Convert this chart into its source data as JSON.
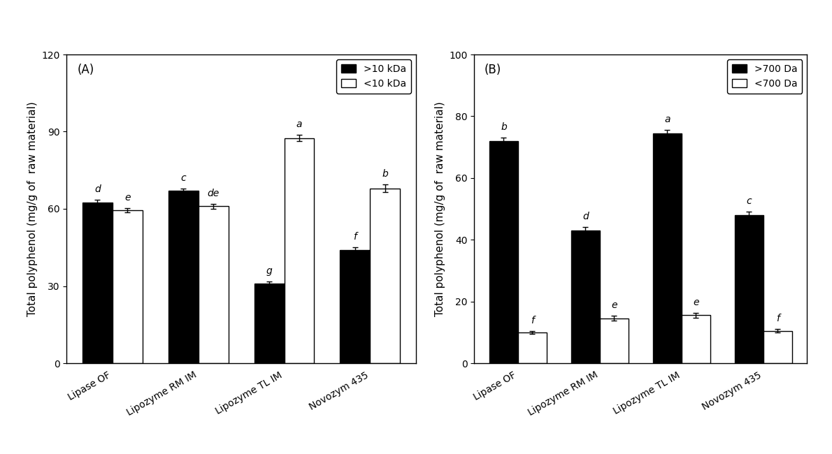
{
  "chart_A": {
    "label": "(A)",
    "categories": [
      "Lipase OF",
      "Lipozyme RM IM",
      "Lipozyme TL IM",
      "Novozym 435"
    ],
    "series": [
      {
        "name": ">10 kDa",
        "color": "#000000",
        "values": [
          62.5,
          67.0,
          31.0,
          44.0
        ],
        "errors": [
          1.0,
          1.0,
          0.8,
          1.2
        ]
      },
      {
        "name": "<10 kDa",
        "color": "#ffffff",
        "values": [
          59.5,
          61.0,
          87.5,
          68.0
        ],
        "errors": [
          0.8,
          1.0,
          1.2,
          1.5
        ]
      }
    ],
    "labels_dark": [
      "d",
      "c",
      "g",
      "f"
    ],
    "labels_light": [
      "e",
      "de",
      "a",
      "b"
    ],
    "ylabel": "Total polyphenol (mg/g of  raw material)",
    "ylim": [
      0,
      120
    ],
    "yticks": [
      0,
      30,
      60,
      90,
      120
    ]
  },
  "chart_B": {
    "label": "(B)",
    "categories": [
      "Lipase OF",
      "Lipozyme RM IM",
      "Lipozyme TL IM",
      "Novozym 435"
    ],
    "series": [
      {
        "name": ">700 Da",
        "color": "#000000",
        "values": [
          72.0,
          43.0,
          74.5,
          48.0
        ],
        "errors": [
          1.0,
          1.2,
          1.0,
          1.0
        ]
      },
      {
        "name": "<700 Da",
        "color": "#ffffff",
        "values": [
          10.0,
          14.5,
          15.5,
          10.5
        ],
        "errors": [
          0.5,
          0.8,
          0.8,
          0.5
        ]
      }
    ],
    "labels_dark": [
      "b",
      "d",
      "a",
      "c"
    ],
    "labels_light": [
      "f",
      "e",
      "e",
      "f"
    ],
    "ylabel": "Total polyphenol (mg/g of  raw material)",
    "ylim": [
      0,
      100
    ],
    "yticks": [
      0,
      20,
      40,
      60,
      80,
      100
    ]
  },
  "bar_width": 0.35,
  "edgecolor": "#000000",
  "linewidth": 1.0,
  "label_fontsize": 10,
  "axis_fontsize": 11,
  "tick_fontsize": 10,
  "legend_fontsize": 10,
  "panel_label_fontsize": 12,
  "background_color": "#ffffff",
  "xtick_rotation": 30
}
